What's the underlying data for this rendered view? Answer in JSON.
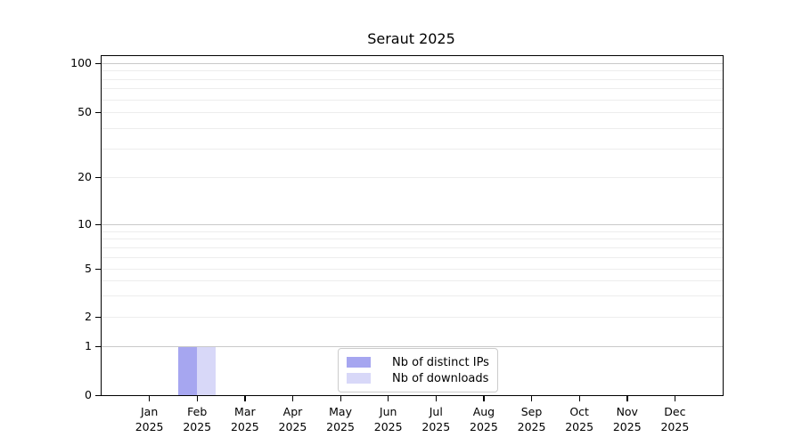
{
  "chart_data": {
    "type": "bar",
    "title": "Seraut 2025",
    "xlabel": "",
    "ylabel": "",
    "categories": [
      "Jan 2025",
      "Feb 2025",
      "Mar 2025",
      "Apr 2025",
      "May 2025",
      "Jun 2025",
      "Jul 2025",
      "Aug 2025",
      "Sep 2025",
      "Oct 2025",
      "Nov 2025",
      "Dec 2025"
    ],
    "series": [
      {
        "name": "Nb of distinct IPs",
        "color": "#a6a6f0",
        "values": [
          0,
          1,
          0,
          0,
          0,
          0,
          0,
          0,
          0,
          0,
          0,
          0
        ]
      },
      {
        "name": "Nb of downloads",
        "color": "#d8d8f8",
        "values": [
          0,
          1,
          0,
          0,
          0,
          0,
          0,
          0,
          0,
          0,
          0,
          0
        ]
      }
    ],
    "yticks": [
      0,
      1,
      2,
      5,
      10,
      20,
      50,
      100
    ],
    "yscale": "log above 1, linear 0-1 (symlog-like)",
    "ylim": [
      0,
      110
    ],
    "grid": {
      "horizontal": true,
      "vertical": false,
      "minor_gridlines": true
    },
    "legend": {
      "position": "inside, lower center",
      "entries": [
        "Nb of distinct IPs",
        "Nb of downloads"
      ]
    },
    "colors": {
      "grid_major": "#c9c9c9",
      "grid_minor": "#ededed",
      "axis": "#000000",
      "text": "#000000"
    }
  }
}
